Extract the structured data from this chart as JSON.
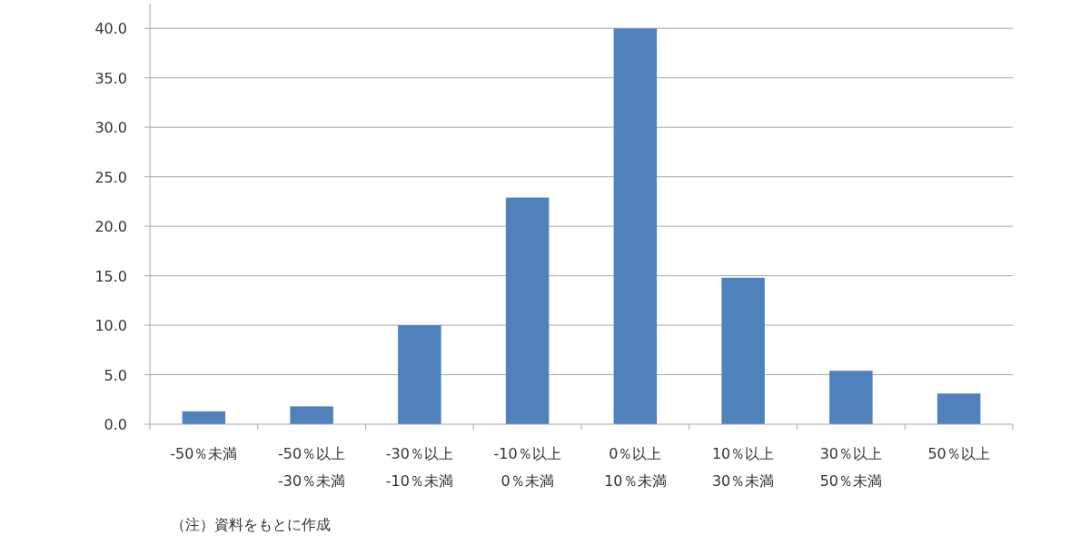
{
  "chart_data": {
    "type": "bar",
    "categories": [
      "-50％未満",
      "-50％以上\n-30％未満",
      "-30％以上\n-10％未満",
      "-10％以上\n0％未満",
      "0％以上\n10％未満",
      "10％以上\n30％未満",
      "30％以上\n50％未満",
      "50％以上"
    ],
    "values": [
      1.3,
      1.8,
      10.0,
      22.9,
      40.0,
      14.8,
      5.4,
      3.1
    ],
    "color": "#4f81bd",
    "ylim": [
      0,
      42.5
    ],
    "yticks": [
      {
        "value": 0,
        "label": "0.0"
      },
      {
        "value": 5,
        "label": "5.0"
      },
      {
        "value": 10,
        "label": "10.0"
      },
      {
        "value": 15,
        "label": "15.0"
      },
      {
        "value": 20,
        "label": "20.0"
      },
      {
        "value": 25,
        "label": "25.0"
      },
      {
        "value": 30,
        "label": "30.0"
      },
      {
        "value": 35,
        "label": "35.0"
      },
      {
        "value": 40,
        "label": "40.0"
      }
    ],
    "grid": "y",
    "annotations": [
      "（注）資料をもとに作成"
    ]
  }
}
